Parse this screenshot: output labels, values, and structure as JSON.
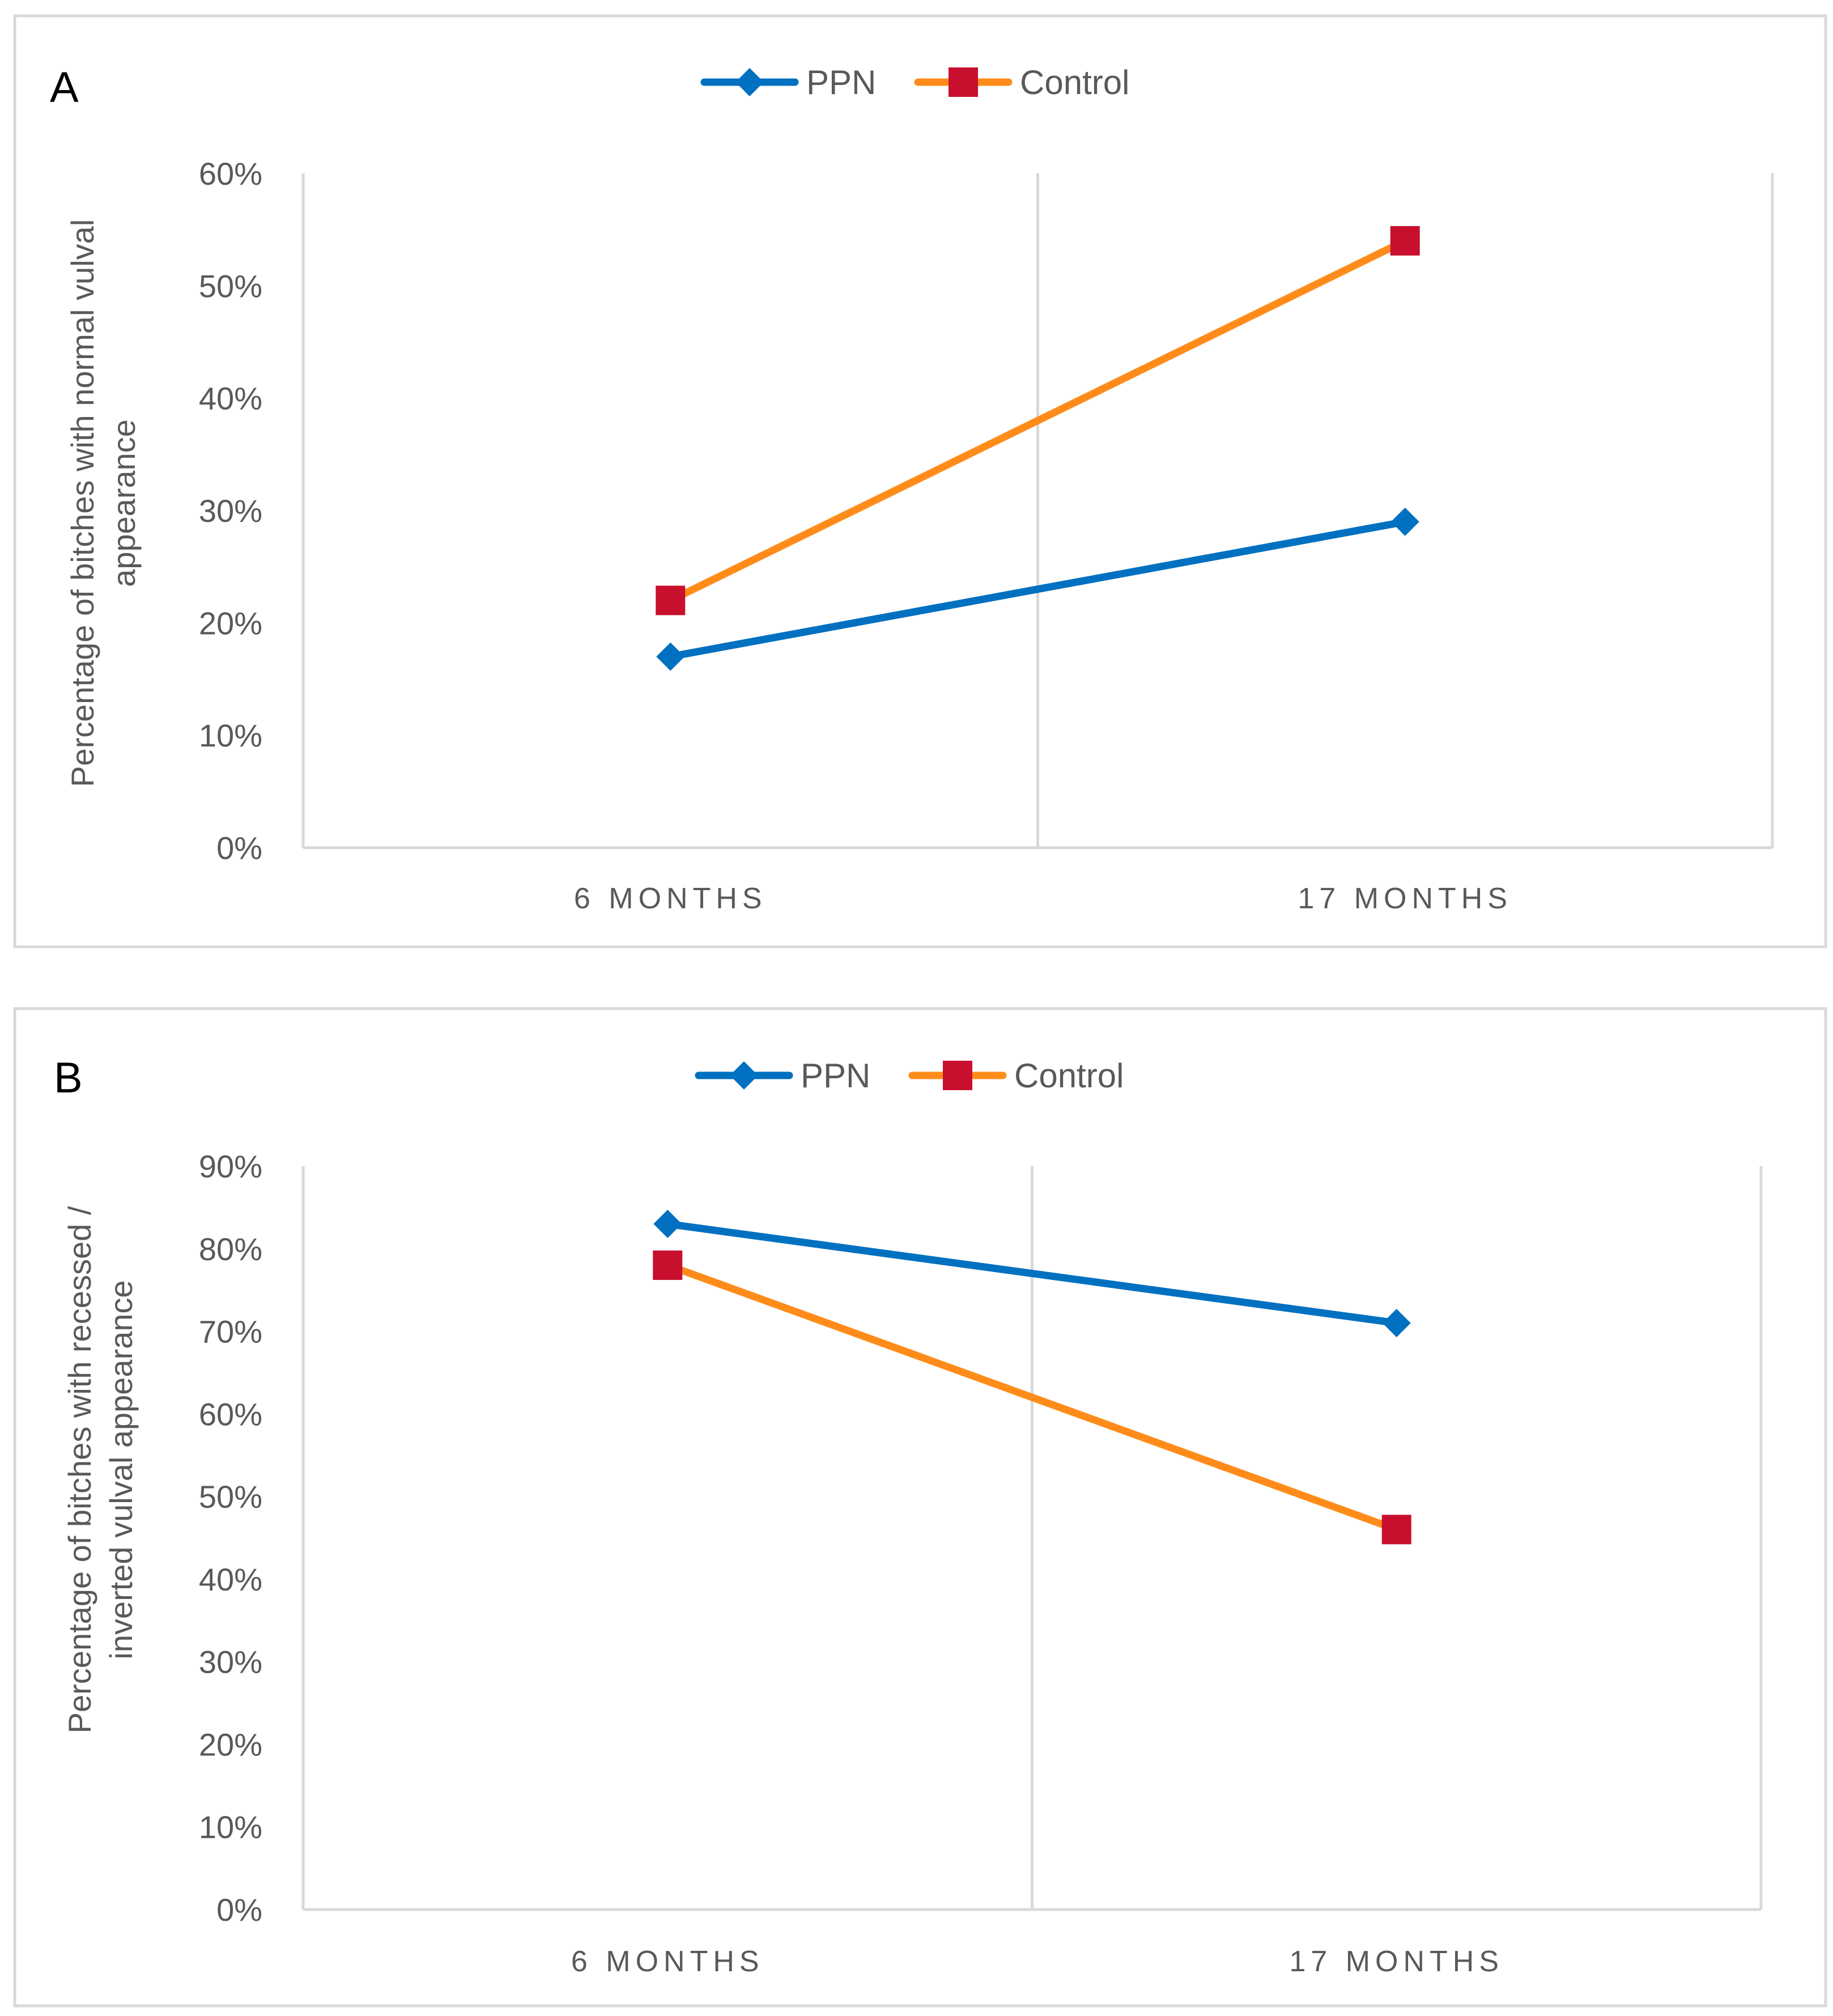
{
  "chart_data": [
    {
      "type": "line",
      "panel_label": "A",
      "categories": [
        "6 MONTHS",
        "17 MONTHS"
      ],
      "series": [
        {
          "name": "PPN",
          "values": [
            17,
            29
          ],
          "color": "#0070C0",
          "marker": "diamond"
        },
        {
          "name": "Control",
          "values": [
            22,
            54
          ],
          "color": "#FF8C1A",
          "marker_color": "#C8102E",
          "marker": "square"
        }
      ],
      "ylabel_lines": [
        "Percentage of bitches with normal vulval",
        "appearance"
      ],
      "ylim": [
        0,
        60
      ],
      "yticks": [
        "0%",
        "10%",
        "20%",
        "30%",
        "40%",
        "50%",
        "60%"
      ],
      "grid": "vertical category separators",
      "legend": "top-center"
    },
    {
      "type": "line",
      "panel_label": "B",
      "categories": [
        "6 MONTHS",
        "17 MONTHS"
      ],
      "series": [
        {
          "name": "PPN",
          "values": [
            83,
            71
          ],
          "color": "#0070C0",
          "marker": "diamond"
        },
        {
          "name": "Control",
          "values": [
            78,
            46
          ],
          "color": "#FF8C1A",
          "marker_color": "#C8102E",
          "marker": "square"
        }
      ],
      "ylabel_lines": [
        "Percentage of bitches with recessed /",
        "inverted vulval appearance"
      ],
      "ylim": [
        0,
        90
      ],
      "yticks": [
        "0%",
        "10%",
        "20%",
        "30%",
        "40%",
        "50%",
        "60%",
        "70%",
        "80%",
        "90%"
      ],
      "grid": "vertical category separators",
      "legend": "top-center"
    }
  ]
}
